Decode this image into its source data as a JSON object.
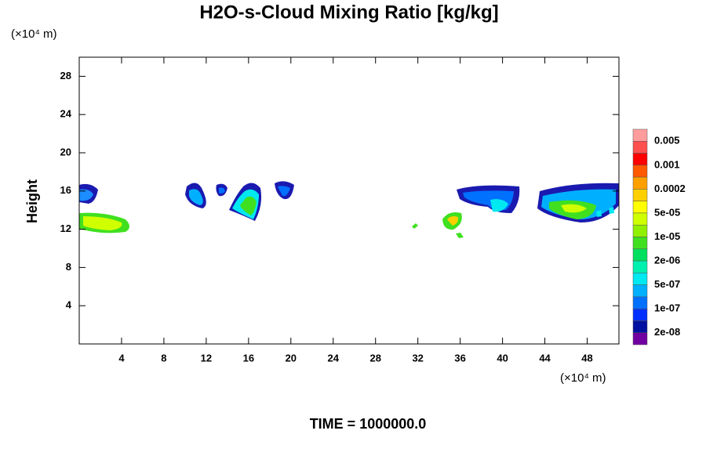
{
  "chart_data": {
    "type": "contour",
    "title": "H2O-s-Cloud Mixing Ratio [kg/kg]",
    "y_unit": "(×10⁴ m)",
    "x_unit": "(×10⁴ m)",
    "y_label": "Height",
    "footer": "TIME = 1000000.0",
    "xlim": [
      0,
      51
    ],
    "xticks": [
      4,
      8,
      12,
      16,
      20,
      24,
      28,
      32,
      36,
      40,
      44,
      48
    ],
    "ylim": [
      0,
      30
    ],
    "yticks": [
      4,
      8,
      12,
      16,
      20,
      24,
      28
    ],
    "colorbar": {
      "colors": [
        "#ff9c9c",
        "#ff5050",
        "#ff0000",
        "#ff5a00",
        "#ffa000",
        "#ffd000",
        "#ffff00",
        "#d0ff00",
        "#90f000",
        "#40e020",
        "#00e060",
        "#00f0b0",
        "#00e8f0",
        "#00b0ff",
        "#0070ff",
        "#0030ff",
        "#0010a0",
        "#7000a0"
      ],
      "labels": [
        "0.005",
        "0.001",
        "0.0002",
        "5e-05",
        "1e-05",
        "2e-06",
        "5e-07",
        "1e-07",
        "2e-08"
      ]
    }
  }
}
